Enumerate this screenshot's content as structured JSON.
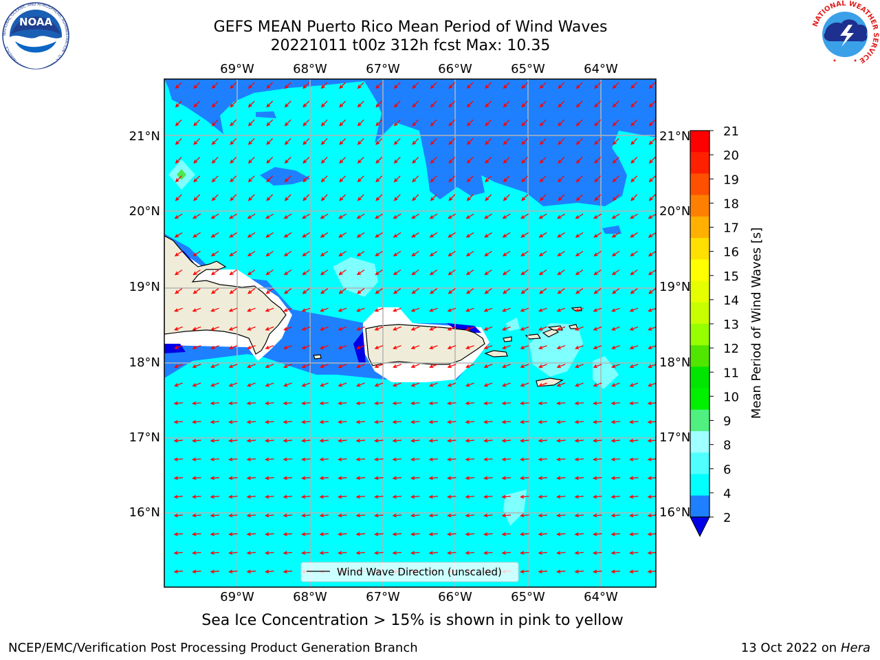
{
  "header": {
    "title_line1": "GEFS MEAN Puerto Rico Mean Period of Wind Waves",
    "title_line2": "20221011 t00z 312h fcst   Max: 10.35"
  },
  "map": {
    "lon_labels": [
      "69°W",
      "68°W",
      "67°W",
      "66°W",
      "65°W",
      "64°W"
    ],
    "lat_labels": [
      "21°N",
      "20°N",
      "19°N",
      "18°N",
      "17°N",
      "16°N"
    ],
    "legend_label": "Wind Wave Direction (unscaled)",
    "colors": {
      "land": "#efedd9",
      "ocean_main": "#00ffff",
      "ocean_low": "#1e80ff",
      "ocean_lowest": "#0000e6",
      "ocean_light": "#80ffff",
      "arrow": "#ff0000",
      "grid": "#b4b4b4"
    }
  },
  "colorbar": {
    "label": "Mean Period of Wind Waves [s]",
    "ticks": [
      "21",
      "20",
      "19",
      "18",
      "17",
      "16",
      "15",
      "14",
      "13",
      "12",
      "11",
      "10",
      "9",
      "8",
      "6",
      "4",
      "2"
    ],
    "colors": [
      "#ff0000",
      "#ff2000",
      "#ff5000",
      "#ff8000",
      "#ffb000",
      "#ffe000",
      "#ffff00",
      "#e6ff00",
      "#c8ff00",
      "#96ff00",
      "#50e600",
      "#00e600",
      "#00f000",
      "#50f080",
      "#a0ffff",
      "#50ffff",
      "#00ffff",
      "#1e80ff",
      "#0000e6"
    ]
  },
  "footer": {
    "note": "Sea Ice Concentration > 15% is shown in pink to yellow",
    "left": "NCEP/EMC/Verification Post Processing Product Generation Branch",
    "right_prefix": "13 Oct 2022 on ",
    "right_host": "Hera"
  },
  "logos": {
    "noaa": "NOAA",
    "noaa_ring": "NATIONAL OCEANIC AND ATMOSPHERIC ADMINISTRATION · U.S. DEPARTMENT OF COMMERCE ·",
    "nws_ring": "NATIONAL WEATHER SERVICE"
  }
}
